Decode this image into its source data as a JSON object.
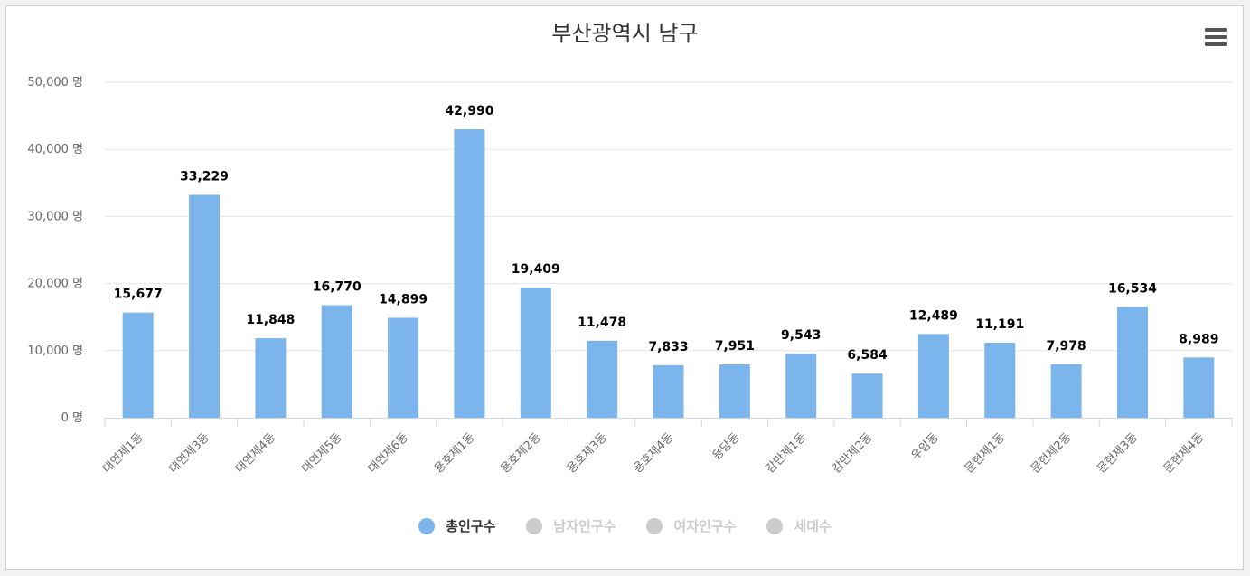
{
  "chart_data": {
    "type": "bar",
    "title": "부산광역시 남구",
    "categories": [
      "대연제1동",
      "대연제3동",
      "대연제4동",
      "대연제5동",
      "대연제6동",
      "용호제1동",
      "용호제2동",
      "용호제3동",
      "용호제4동",
      "용당동",
      "감만제1동",
      "감만제2동",
      "우암동",
      "문현제1동",
      "문현제2동",
      "문현제3동",
      "문현제4동"
    ],
    "series": [
      {
        "name": "총인구수",
        "values": [
          15677,
          33229,
          11848,
          16770,
          14899,
          42990,
          19409,
          11478,
          7833,
          7951,
          9543,
          6584,
          12489,
          11191,
          7978,
          16534,
          8989
        ]
      }
    ],
    "data_labels": [
      "15,677",
      "33,229",
      "11,848",
      "16,770",
      "14,899",
      "42,990",
      "19,409",
      "11,478",
      "7,833",
      "7,951",
      "9,543",
      "6,584",
      "12,489",
      "11,191",
      "7,978",
      "16,534",
      "8,989"
    ],
    "y_ticks": [
      0,
      10000,
      20000,
      30000,
      40000,
      50000
    ],
    "y_tick_labels": [
      "0 명",
      "10,000 명",
      "20,000 명",
      "30,000 명",
      "40,000 명",
      "50,000 명"
    ],
    "ylim": [
      0,
      50000
    ],
    "xlabel": "",
    "ylabel": "",
    "grid": true,
    "legend_position": "bottom"
  },
  "legend": [
    {
      "label": "총인구수",
      "color": "#7cb5ec",
      "text_color": "#333333",
      "active": true
    },
    {
      "label": "남자인구수",
      "color": "#cccccc",
      "text_color": "#cccccc",
      "active": false
    },
    {
      "label": "여자인구수",
      "color": "#cccccc",
      "text_color": "#cccccc",
      "active": false
    },
    {
      "label": "세대수",
      "color": "#cccccc",
      "text_color": "#cccccc",
      "active": false
    }
  ],
  "colors": {
    "bar": "#7cb5ec",
    "grid": "#e6e6e6",
    "axis": "#ccd6eb"
  }
}
